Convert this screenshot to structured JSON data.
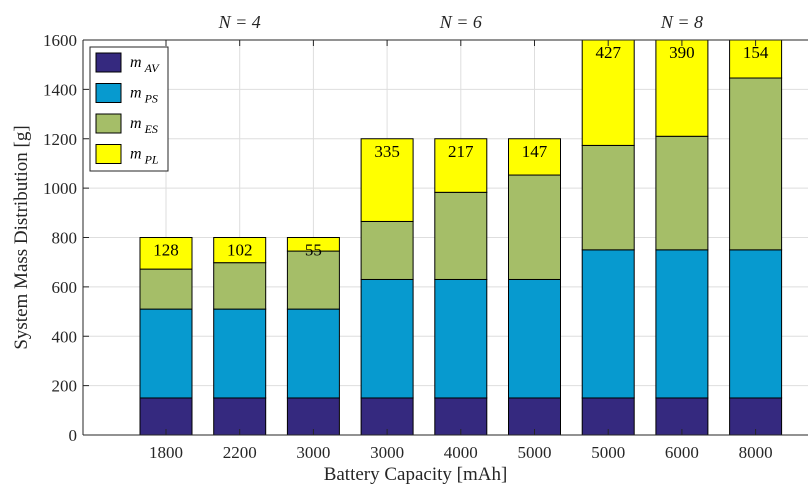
{
  "chart_data": {
    "type": "bar",
    "stacked": true,
    "xlabel": "Battery Capacity [mAh]",
    "ylabel": "System Mass Distribution [g]",
    "ylim": [
      0,
      1600
    ],
    "yticks": [
      0,
      200,
      400,
      600,
      800,
      1000,
      1200,
      1400,
      1600
    ],
    "grid": true,
    "legend_position": "top-left",
    "categories": [
      "1800",
      "2200",
      "3000",
      "3000",
      "4000",
      "5000",
      "5000",
      "6000",
      "8000"
    ],
    "group_labels": [
      {
        "label": "N = 4",
        "category_index": 1
      },
      {
        "label": "N = 6",
        "category_index": 4
      },
      {
        "label": "N = 8",
        "category_index": 7
      }
    ],
    "series": [
      {
        "name": "m",
        "subscript": "AV",
        "color": "#35297F",
        "values": [
          150,
          150,
          150,
          150,
          150,
          150,
          150,
          150,
          150
        ]
      },
      {
        "name": "m",
        "subscript": "PS",
        "color": "#079ACF",
        "values": [
          360,
          360,
          360,
          480,
          480,
          480,
          600,
          600,
          600
        ]
      },
      {
        "name": "m",
        "subscript": "ES",
        "color": "#A5BE68",
        "values": [
          162,
          188,
          235,
          235,
          353,
          423,
          423,
          460,
          696
        ]
      },
      {
        "name": "m",
        "subscript": "PL",
        "color": "#FFFF00",
        "values": [
          128,
          102,
          55,
          335,
          217,
          147,
          427,
          390,
          154
        ]
      }
    ],
    "data_labels": [
      "128",
      "102",
      "55",
      "335",
      "217",
      "147",
      "427",
      "390",
      "154"
    ]
  }
}
